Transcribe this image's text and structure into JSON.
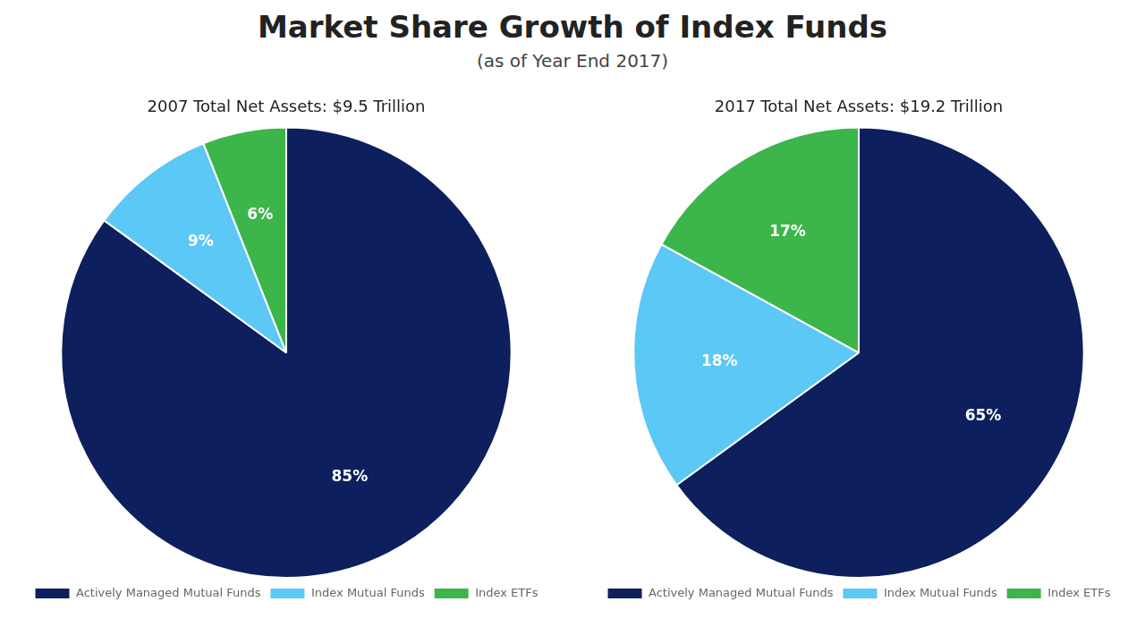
{
  "title": "Market Share Growth of Index Funds",
  "subtitle": "(as of Year End 2017)",
  "chart_data": [
    {
      "type": "pie",
      "title": "2007 Total Net Assets: $9.5 Trillion",
      "categories": [
        "Actively Managed Mutual Funds",
        "Index Mutual Funds",
        "Index ETFs"
      ],
      "values": [
        85,
        9,
        6
      ],
      "value_labels": [
        "85%",
        "9%",
        "6%"
      ],
      "colors": [
        "#0d1f5c",
        "#5bc8f5",
        "#3cb54a"
      ],
      "data_labels": true,
      "legend": "bottom"
    },
    {
      "type": "pie",
      "title": "2017 Total Net Assets: $19.2 Trillion",
      "categories": [
        "Actively Managed Mutual Funds",
        "Index Mutual Funds",
        "Index ETFs"
      ],
      "values": [
        65,
        18,
        17
      ],
      "value_labels": [
        "65%",
        "18%",
        "17%"
      ],
      "colors": [
        "#0d1f5c",
        "#5bc8f5",
        "#3cb54a"
      ],
      "data_labels": true,
      "legend": "bottom"
    }
  ]
}
